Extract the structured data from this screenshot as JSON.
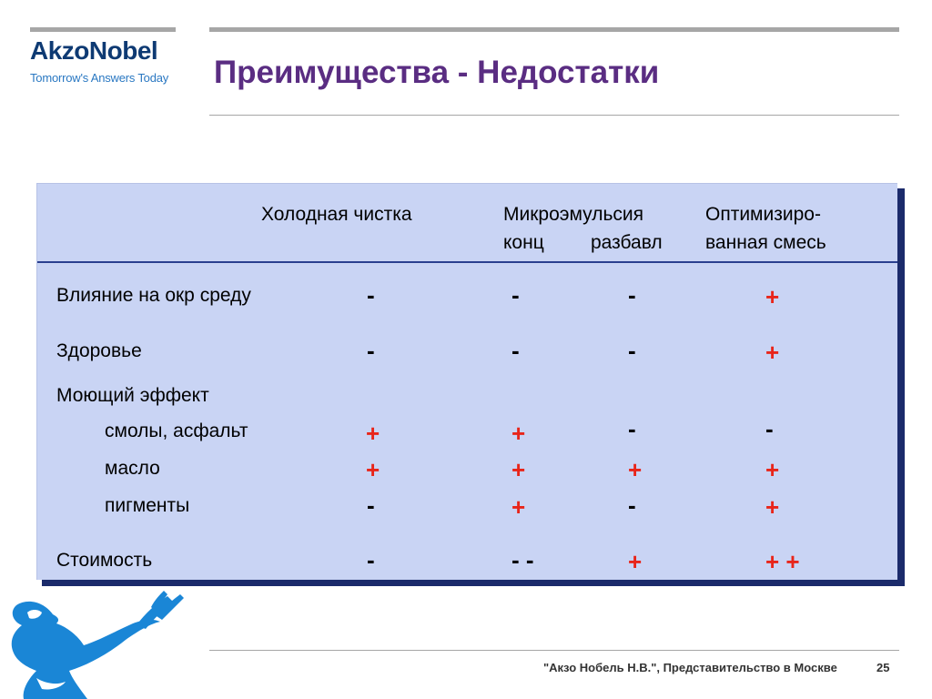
{
  "logo": {
    "name": "AkzoNobel",
    "tagline": "Tomorrow's Answers Today"
  },
  "title": "Преимущества - Недостатки",
  "columns": {
    "cold": "Холодная чистка",
    "micro": "Микроэмульсия",
    "micro_conc": "конц",
    "micro_dil": "разбавл",
    "opt_line1": "Оптимизиро-",
    "opt_line2": "ванная смесь"
  },
  "rows": {
    "env": {
      "label": "Влияние на окр среду",
      "cold": "-",
      "conc": "-",
      "dil": "-",
      "opt": "+"
    },
    "health": {
      "label": "Здоровье",
      "cold": "-",
      "conc": "-",
      "dil": "-",
      "opt": "+"
    },
    "wash_heading": "Моющий эффект",
    "resin": {
      "label": "смолы, асфальт",
      "cold": "+",
      "conc": "+",
      "dil": "-",
      "opt": "-"
    },
    "oil": {
      "label": "масло",
      "cold": "+",
      "conc": "+",
      "dil": "+",
      "opt": "+"
    },
    "pigment": {
      "label": "пигменты",
      "cold": "-",
      "conc": "+",
      "dil": "-",
      "opt": "+"
    },
    "cost": {
      "label": "Стоимость",
      "cold": "-",
      "conc": "- -",
      "dil": "+",
      "opt": "+ +"
    }
  },
  "footer": "\"Акзо Нобель Н.В.\", Представительство в Москве",
  "page_number": "25",
  "colors": {
    "title": "#5a2d82",
    "plus": "#e8251a",
    "minus": "#000000",
    "table_bg": "#c9d4f4",
    "brand": "#0e3a73",
    "figure": "#1a86d6"
  }
}
